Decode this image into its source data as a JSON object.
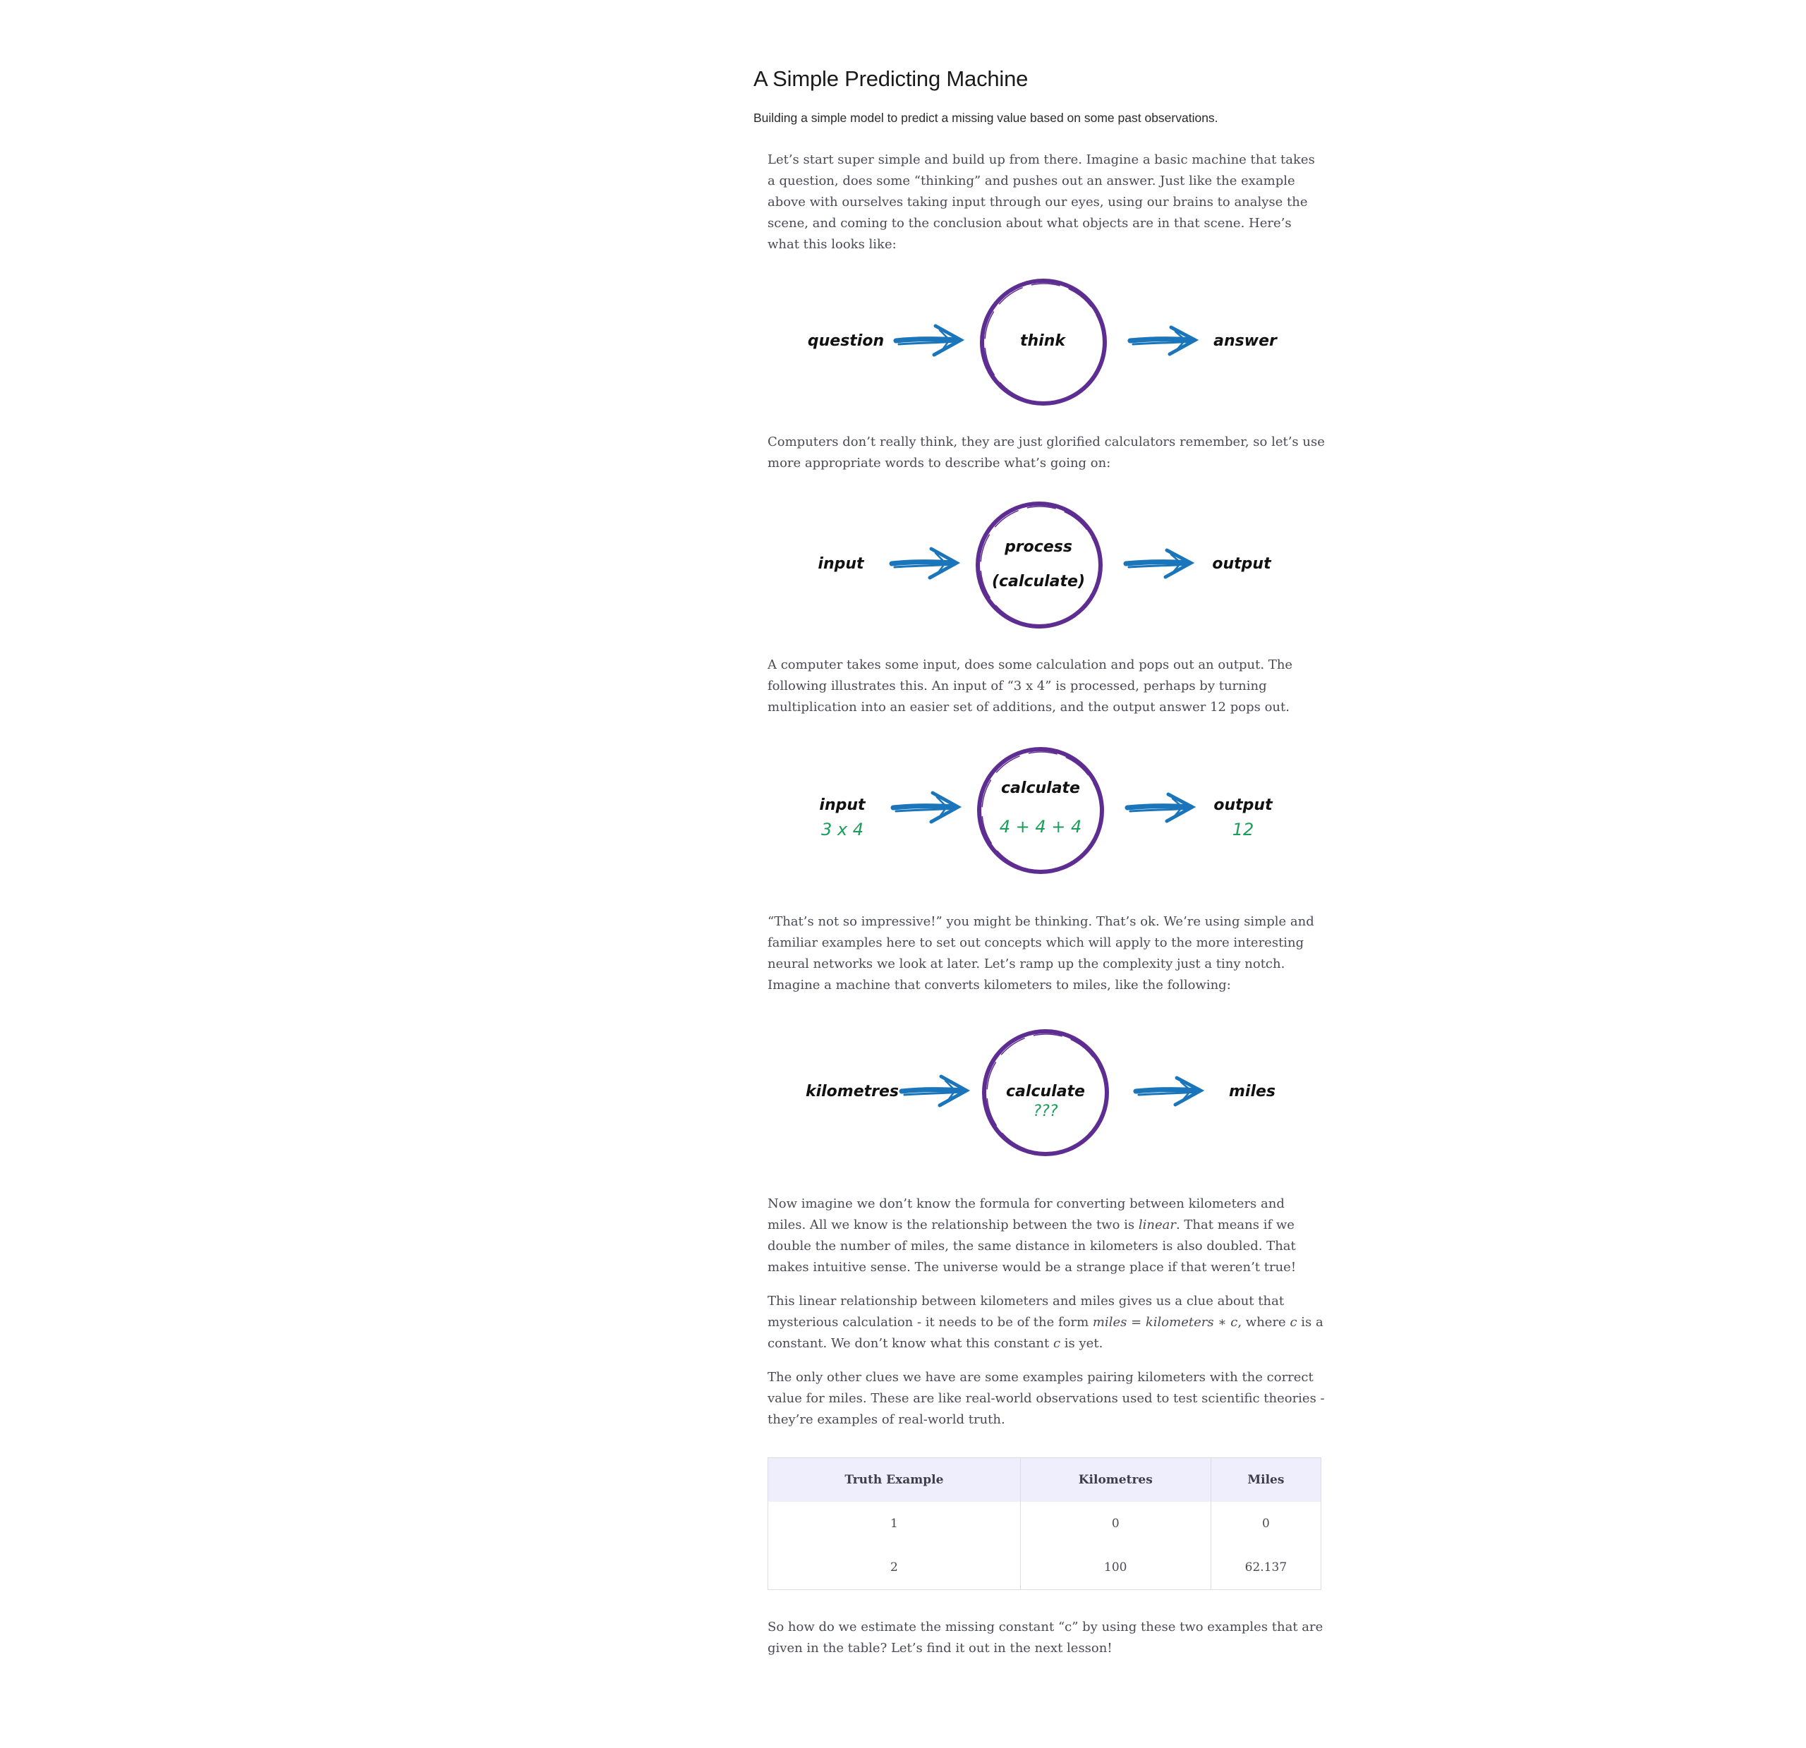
{
  "header": {
    "title": "A Simple Predicting Machine",
    "subtitle": "Building a simple model to predict a missing value based on some past observations."
  },
  "paragraphs": {
    "p1": "Let’s start super simple and build up from there. Imagine a basic machine that takes a question, does some “thinking” and pushes out an answer. Just like the example above with ourselves taking input through our eyes, using our brains to analyse the scene, and coming to the conclusion about what objects are in that scene. Here’s what this looks like:",
    "p2": "Computers don’t really think, they are just glorified calculators remember, so let’s use more appropriate words to describe what’s going on:",
    "p3_before": "A computer takes some input, does some calculation and pops out an output. The following illustrates this. An input of “3 x 4” is processed, perhaps by turning multiplication into an easier set of additions, and the output answer ",
    "p3_number": "12",
    "p3_after": " pops out.",
    "p4": "“That’s not so impressive!” you might be thinking. That’s ok. We’re using simple and familiar examples here to set out concepts which will apply to the more interesting neural networks we look at later. Let’s ramp up the complexity just a tiny notch. Imagine a machine that converts kilometers to miles, like the following:",
    "p5_before": "Now imagine we don’t know the formula for converting between kilometers and miles. All we know is the relationship between the two is ",
    "p5_em": "linear",
    "p5_after": ". That means if we double the number of miles, the same distance in kilometers is also doubled. That makes intuitive sense. The universe would be a strange place if that weren’t true!",
    "p6_before": "This linear relationship between kilometers and miles gives us a clue about that mysterious calculation - it needs to be of the form ",
    "p6_formula": "miles = kilometers ∗ c",
    "p6_mid": ", where ",
    "p6_c1": "c",
    "p6_mid2": " is a constant. We don’t know what this constant ",
    "p6_c2": "c",
    "p6_after": " is yet.",
    "p7": "The only other clues we have are some examples pairing kilometers with the correct value for miles. These are like real-world observations used to test scientific theories - they’re examples of real-world truth.",
    "p8": "So how do we estimate the missing constant “c” by using these two examples that are given in the table? Let’s find it out in the next lesson!"
  },
  "diagrams": {
    "d1": {
      "input": "question",
      "center": "think",
      "output": "answer"
    },
    "d2": {
      "input": "input",
      "center_top": "process",
      "center_bottom": "(calculate)",
      "output": "output"
    },
    "d3": {
      "input": "input",
      "input_value": "3 x 4",
      "center_top": "calculate",
      "center_bottom": "4 + 4 + 4",
      "output": "output",
      "output_value": "12"
    },
    "d4": {
      "input": "kilometres",
      "center_top": "calculate",
      "center_bottom": "???",
      "output": "miles"
    }
  },
  "table": {
    "headers": [
      "Truth Example",
      "Kilometres",
      "Miles"
    ],
    "rows": [
      [
        "1",
        "0",
        "0"
      ],
      [
        "2",
        "100",
        "62.137"
      ]
    ]
  },
  "colors": {
    "circle": "#5e2d91",
    "arrow": "#1a75bb",
    "value_text": "#1a9e5a",
    "label_text": "#111111",
    "table_header_bg": "#eeeefc"
  }
}
